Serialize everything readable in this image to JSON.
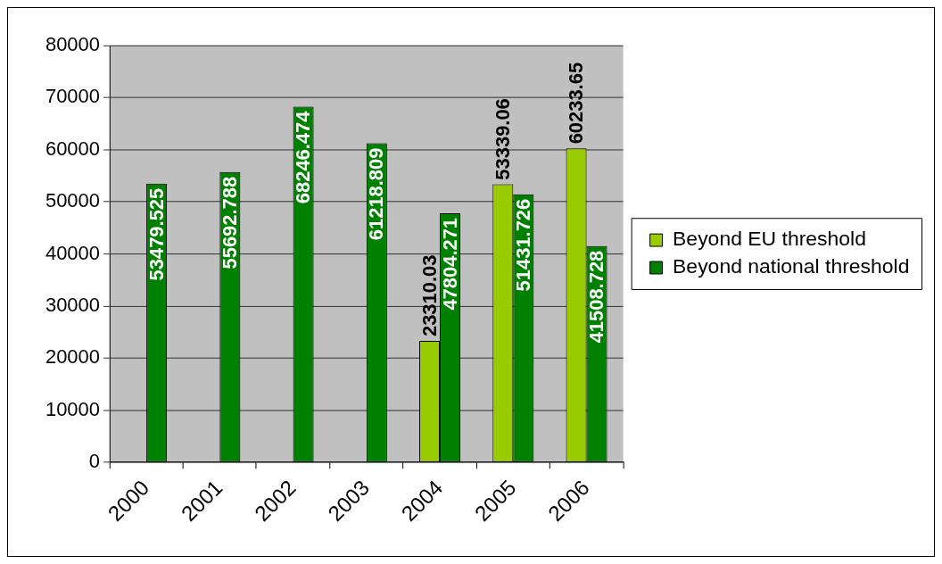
{
  "chart_data": {
    "type": "bar",
    "categories": [
      "2000",
      "2001",
      "2002",
      "2003",
      "2004",
      "2005",
      "2006"
    ],
    "series": [
      {
        "name": "Beyond EU threshold",
        "color": "#99cc00",
        "values": [
          null,
          null,
          null,
          null,
          23310.03,
          53339.06,
          60233.65
        ]
      },
      {
        "name": "Beyond national threshold",
        "color": "#008000",
        "values": [
          53479.525,
          55692.788,
          68246.474,
          61218.809,
          47804.271,
          51431.726,
          41508.728
        ]
      }
    ],
    "ylim": [
      0,
      80000
    ],
    "yticks": [
      0,
      10000,
      20000,
      30000,
      40000,
      50000,
      60000,
      70000,
      80000
    ],
    "grid": "y",
    "legend": "right",
    "data_labels": true
  }
}
